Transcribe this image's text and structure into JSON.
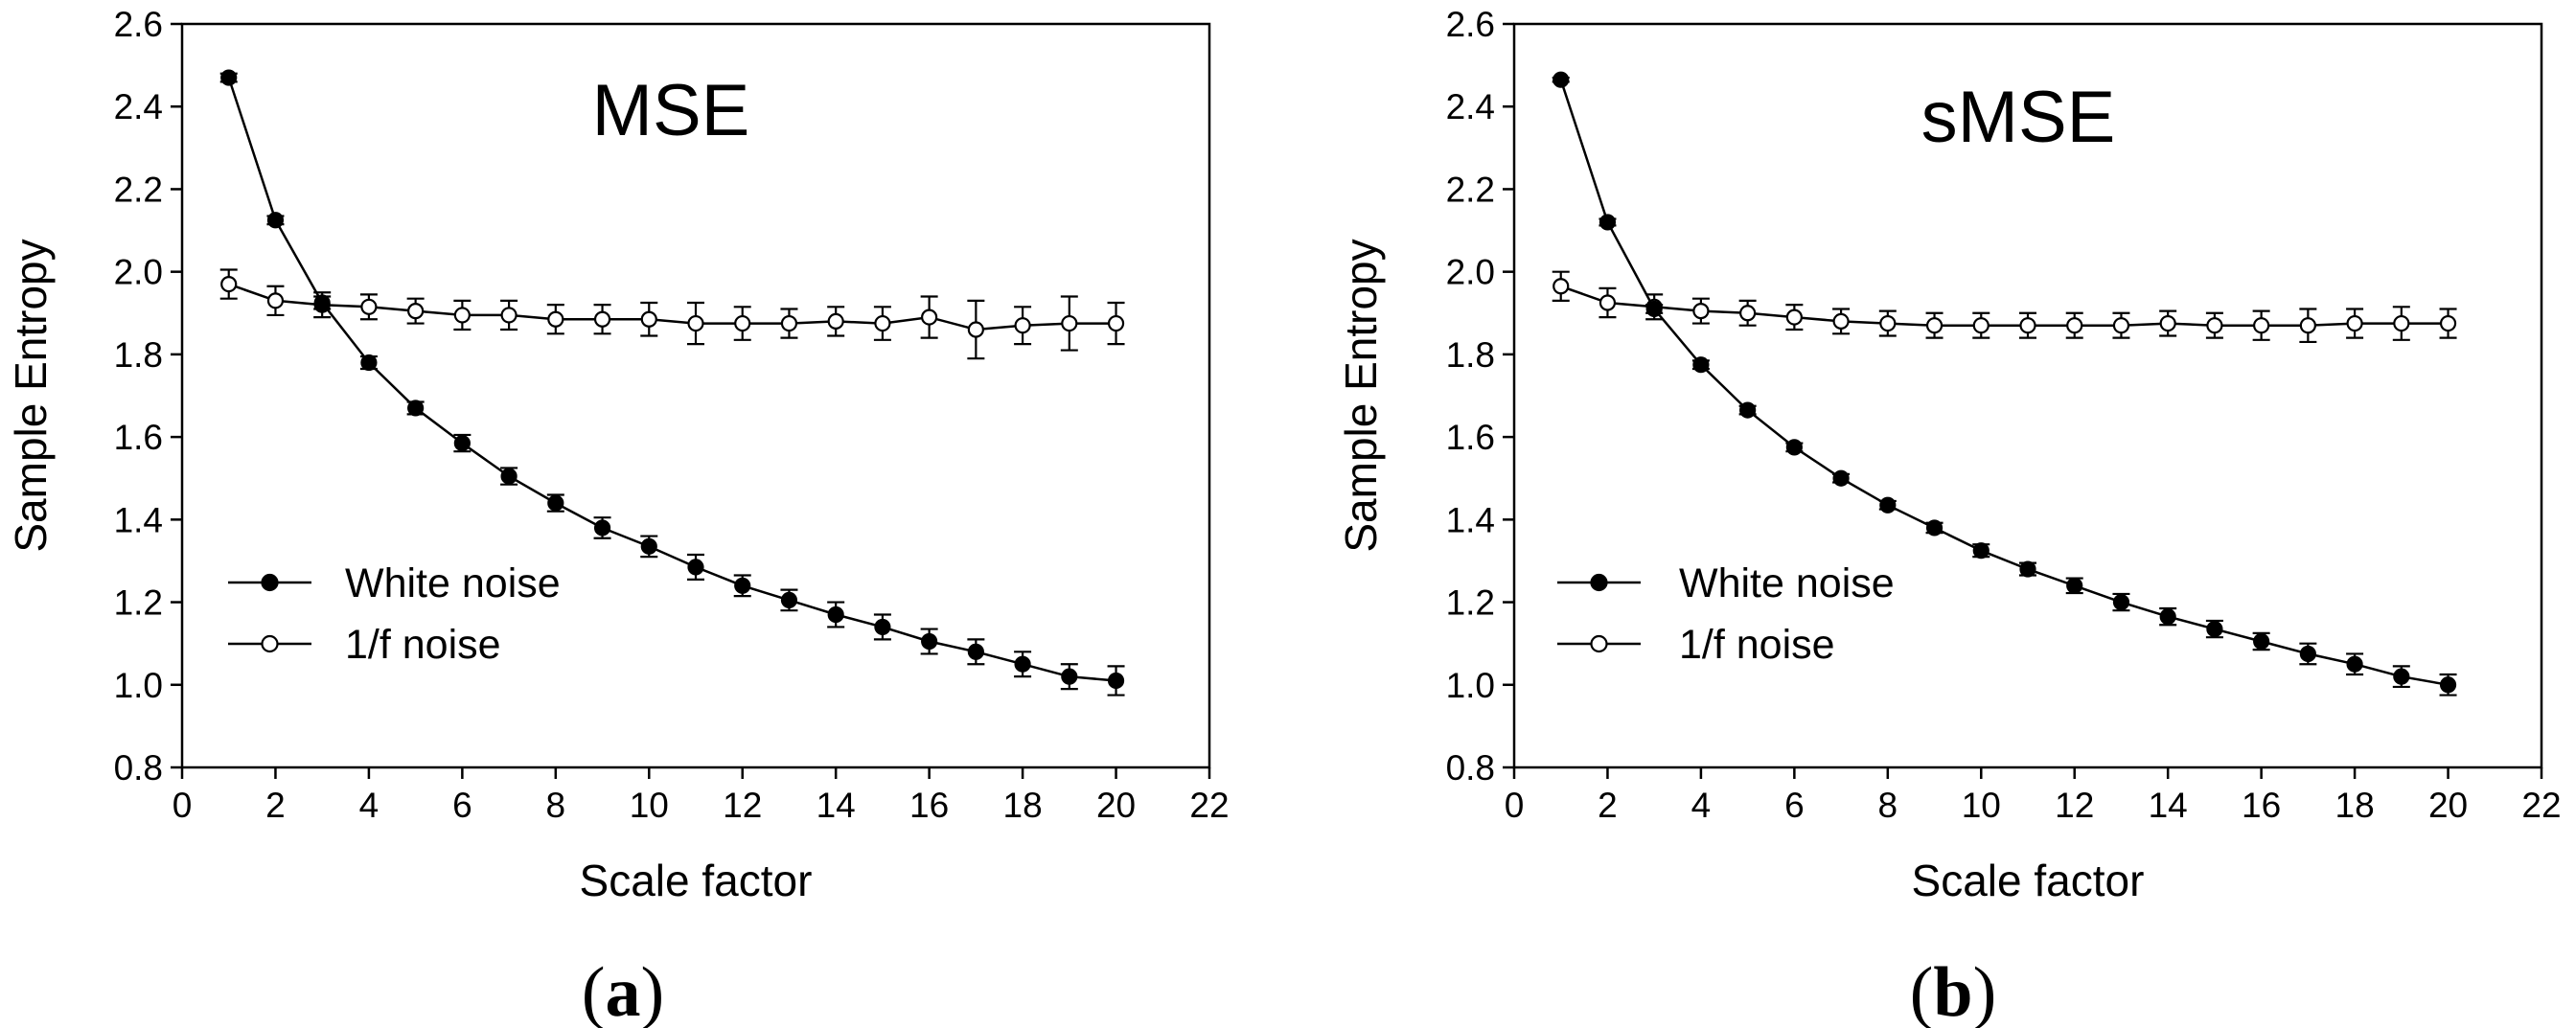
{
  "chart_data": [
    {
      "type": "line",
      "title": "MSE",
      "panel_label": {
        "open": "(",
        "letter": "a",
        "close": ")"
      },
      "xlabel": "Scale factor",
      "ylabel": "Sample Entropy",
      "xlim": [
        0,
        22
      ],
      "ylim": [
        0.8,
        2.6
      ],
      "xticks": [
        "0",
        "2",
        "4",
        "6",
        "8",
        "10",
        "12",
        "14",
        "16",
        "18",
        "20",
        "22"
      ],
      "yticks": [
        "0.8",
        "1.0",
        "1.2",
        "1.4",
        "1.6",
        "1.8",
        "2.0",
        "2.2",
        "2.4",
        "2.6"
      ],
      "grid": false,
      "legend_position": "bottom-left",
      "series": [
        {
          "name": "White noise",
          "marker": "filled-circle",
          "x": [
            1,
            2,
            3,
            4,
            5,
            6,
            7,
            8,
            9,
            10,
            11,
            12,
            13,
            14,
            15,
            16,
            17,
            18,
            19,
            20
          ],
          "y": [
            2.47,
            2.125,
            1.925,
            1.78,
            1.67,
            1.585,
            1.505,
            1.44,
            1.38,
            1.335,
            1.285,
            1.24,
            1.205,
            1.17,
            1.14,
            1.105,
            1.08,
            1.05,
            1.02,
            1.01
          ],
          "error": [
            0.01,
            0.01,
            0.015,
            0.015,
            0.015,
            0.02,
            0.02,
            0.02,
            0.025,
            0.025,
            0.03,
            0.025,
            0.025,
            0.03,
            0.03,
            0.03,
            0.03,
            0.03,
            0.03,
            0.035
          ]
        },
        {
          "name": "1/f noise",
          "marker": "open-circle",
          "x": [
            1,
            2,
            3,
            4,
            5,
            6,
            7,
            8,
            9,
            10,
            11,
            12,
            13,
            14,
            15,
            16,
            17,
            18,
            19,
            20
          ],
          "y": [
            1.97,
            1.93,
            1.92,
            1.915,
            1.905,
            1.895,
            1.895,
            1.885,
            1.885,
            1.885,
            1.875,
            1.875,
            1.875,
            1.88,
            1.875,
            1.89,
            1.86,
            1.87,
            1.875,
            1.875
          ],
          "error": [
            0.035,
            0.035,
            0.03,
            0.03,
            0.03,
            0.035,
            0.035,
            0.035,
            0.035,
            0.04,
            0.05,
            0.04,
            0.035,
            0.035,
            0.04,
            0.05,
            0.07,
            0.045,
            0.065,
            0.05
          ]
        }
      ]
    },
    {
      "type": "line",
      "title": "sMSE",
      "panel_label": {
        "open": "(",
        "letter": "b",
        "close": ")"
      },
      "xlabel": "Scale factor",
      "ylabel": "Sample Entropy",
      "xlim": [
        0,
        22
      ],
      "ylim": [
        0.8,
        2.6
      ],
      "xticks": [
        "0",
        "2",
        "4",
        "6",
        "8",
        "10",
        "12",
        "14",
        "16",
        "18",
        "20",
        "22"
      ],
      "yticks": [
        "0.8",
        "1.0",
        "1.2",
        "1.4",
        "1.6",
        "1.8",
        "2.0",
        "2.2",
        "2.4",
        "2.6"
      ],
      "grid": false,
      "legend_position": "bottom-left",
      "series": [
        {
          "name": "White noise",
          "marker": "filled-circle",
          "x": [
            1,
            2,
            3,
            4,
            5,
            6,
            7,
            8,
            9,
            10,
            11,
            12,
            13,
            14,
            15,
            16,
            17,
            18,
            19,
            20
          ],
          "y": [
            2.465,
            2.12,
            1.91,
            1.775,
            1.665,
            1.575,
            1.5,
            1.435,
            1.38,
            1.325,
            1.28,
            1.24,
            1.2,
            1.165,
            1.135,
            1.105,
            1.075,
            1.05,
            1.02,
            1.0
          ],
          "error": [
            0.005,
            0.008,
            0.01,
            0.01,
            0.01,
            0.01,
            0.01,
            0.01,
            0.012,
            0.015,
            0.015,
            0.018,
            0.02,
            0.02,
            0.02,
            0.02,
            0.025,
            0.025,
            0.025,
            0.025
          ]
        },
        {
          "name": "1/f noise",
          "marker": "open-circle",
          "x": [
            1,
            2,
            3,
            4,
            5,
            6,
            7,
            8,
            9,
            10,
            11,
            12,
            13,
            14,
            15,
            16,
            17,
            18,
            19,
            20
          ],
          "y": [
            1.965,
            1.925,
            1.915,
            1.905,
            1.9,
            1.89,
            1.88,
            1.875,
            1.87,
            1.87,
            1.87,
            1.87,
            1.87,
            1.875,
            1.87,
            1.87,
            1.87,
            1.875,
            1.875,
            1.875
          ],
          "error": [
            0.035,
            0.035,
            0.03,
            0.03,
            0.03,
            0.03,
            0.03,
            0.03,
            0.03,
            0.03,
            0.03,
            0.03,
            0.03,
            0.03,
            0.03,
            0.035,
            0.04,
            0.035,
            0.04,
            0.035
          ]
        }
      ]
    }
  ]
}
